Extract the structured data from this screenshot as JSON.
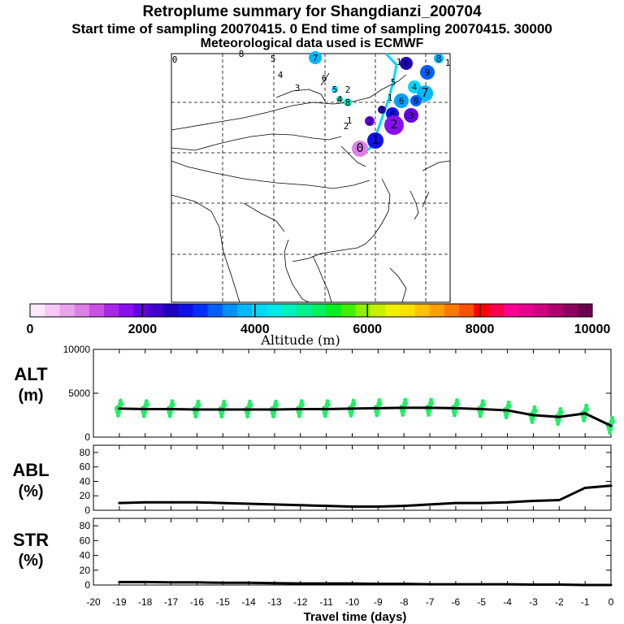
{
  "header": {
    "title": "Retroplume summary for Shangdianzi_200704",
    "sampling_line": "Start time of sampling 20070415.    0     End time of sampling 20070415. 30000",
    "met_line": "Meteorological data used is ECMWF"
  },
  "colorbar": {
    "ticks": [
      "0",
      "2000",
      "4000",
      "6000",
      "8000",
      "10000"
    ],
    "label": "Altitude (m)",
    "colors": [
      "#fce8fc",
      "#f5c8f5",
      "#eaa4ee",
      "#dc80e8",
      "#c850e4",
      "#a828e8",
      "#8810f0",
      "#6400e4",
      "#4000d0",
      "#2000c0",
      "#1010e8",
      "#0030f8",
      "#0060ff",
      "#0090ff",
      "#00b8ff",
      "#00d8f8",
      "#00e8e8",
      "#00f0c0",
      "#00f090",
      "#00f060",
      "#00f020",
      "#40f000",
      "#90f000",
      "#c8f000",
      "#f0f000",
      "#ffe000",
      "#ffc000",
      "#ffa000",
      "#ff7800",
      "#ff5000",
      "#ff0000",
      "#f8004a",
      "#ff0090",
      "#e80090",
      "#d00080",
      "#b00070",
      "#900060",
      "#6c0050"
    ]
  },
  "map": {
    "labels": [
      "0",
      "8",
      "5",
      "7",
      "4",
      "3",
      "6",
      "5",
      "2",
      "4",
      "8",
      "6",
      "1",
      "9",
      "8",
      "1",
      "5",
      "4",
      "7",
      "1",
      "6",
      "9",
      "3",
      "3",
      "8",
      "2",
      "1",
      "2",
      "2",
      "1",
      "0"
    ],
    "line_color": "#00d8ff"
  },
  "chart_data": [
    {
      "type": "line",
      "name": "ALT",
      "title": "ALT",
      "ylabel": "(m)",
      "ylim": [
        0,
        10000
      ],
      "yticks": [
        "0",
        "5000",
        "10000"
      ],
      "x": [
        -19,
        -18,
        -17,
        -16,
        -15,
        -14,
        -13,
        -12,
        -11,
        -10,
        -9,
        -8,
        -7,
        -6,
        -5,
        -4,
        -3,
        -2,
        -1,
        0
      ],
      "values": [
        3250,
        3200,
        3200,
        3150,
        3150,
        3150,
        3150,
        3200,
        3200,
        3250,
        3300,
        3350,
        3350,
        3300,
        3200,
        3050,
        2500,
        2300,
        2700,
        1300
      ],
      "scatter_color": "#22ee66"
    },
    {
      "type": "line",
      "name": "ABL",
      "title": "ABL",
      "ylabel": "(%)",
      "ylim": [
        0,
        90
      ],
      "yticks": [
        "0",
        "20",
        "40",
        "60",
        "80"
      ],
      "x": [
        -19,
        -18,
        -17,
        -16,
        -15,
        -14,
        -13,
        -12,
        -11,
        -10,
        -9,
        -8,
        -7,
        -6,
        -5,
        -4,
        -3,
        -2,
        -1,
        0
      ],
      "values": [
        10,
        11,
        11,
        11,
        10,
        9,
        8,
        7,
        6,
        5,
        5,
        6,
        8,
        10,
        10,
        11,
        13,
        14,
        31,
        34
      ]
    },
    {
      "type": "line",
      "name": "STR",
      "title": "STR",
      "ylabel": "(%)",
      "ylim": [
        0,
        90
      ],
      "yticks": [
        "0",
        "20",
        "40",
        "60",
        "80"
      ],
      "x": [
        -19,
        -18,
        -17,
        -16,
        -15,
        -14,
        -13,
        -12,
        -11,
        -10,
        -9,
        -8,
        -7,
        -6,
        -5,
        -4,
        -3,
        -2,
        -1,
        0
      ],
      "values": [
        4,
        4,
        3.5,
        3.5,
        3,
        3,
        2.5,
        2,
        2,
        2,
        1.5,
        1.5,
        1,
        1,
        1,
        1,
        0.5,
        0.5,
        0,
        0
      ]
    }
  ],
  "xaxis": {
    "ticks": [
      "-20",
      "-19",
      "-18",
      "-17",
      "-16",
      "-15",
      "-14",
      "-13",
      "-12",
      "-11",
      "-10",
      "-9",
      "-8",
      "-7",
      "-6",
      "-5",
      "-4",
      "-3",
      "-2",
      "-1",
      "0"
    ],
    "label": "Travel time (days)"
  }
}
